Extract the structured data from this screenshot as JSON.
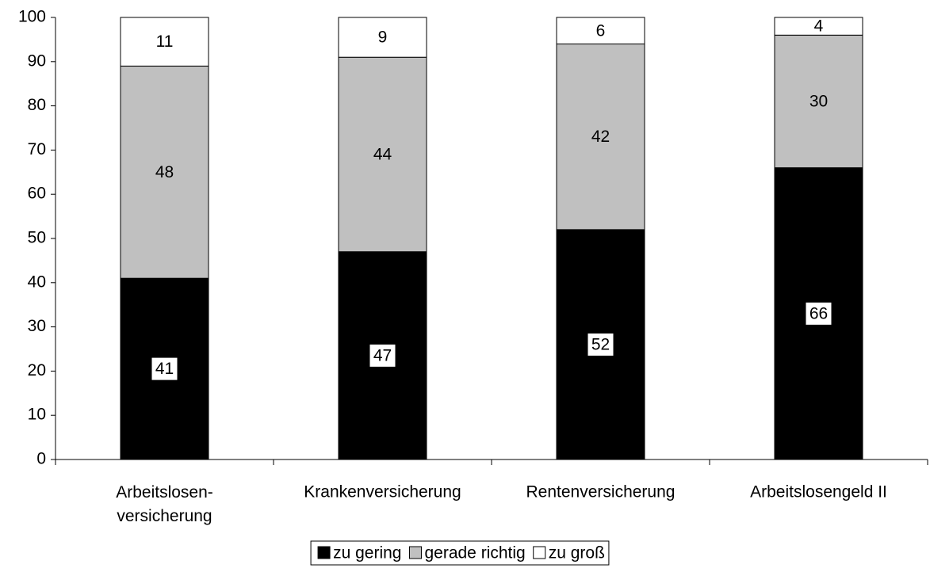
{
  "chart_data": {
    "type": "stacked_bar",
    "categories": [
      "Arbeitslosen- versicherung",
      "Krankenversicherung",
      "Rentenversicherung",
      "Arbeitslosengeld II"
    ],
    "series": [
      {
        "name": "zu gering",
        "color": "#000000",
        "values": [
          41,
          47,
          52,
          66
        ]
      },
      {
        "name": "gerade richtig",
        "color": "#c0c0c0",
        "values": [
          48,
          44,
          42,
          30
        ]
      },
      {
        "name": "zu groß",
        "color": "#ffffff",
        "values": [
          11,
          9,
          6,
          4
        ]
      }
    ],
    "ylim": [
      0,
      100
    ],
    "yticks": [
      0,
      10,
      20,
      30,
      40,
      50,
      60,
      70,
      80,
      90,
      100
    ],
    "legend": "bottom"
  }
}
